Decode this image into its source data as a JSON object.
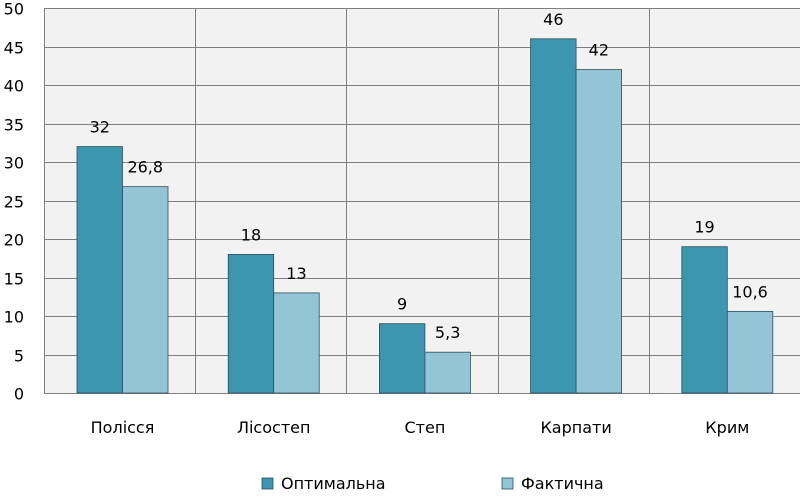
{
  "chart_data": {
    "type": "bar",
    "title": "",
    "xlabel": "",
    "ylabel": "",
    "categories": [
      "Полісся",
      "Лісостеп",
      "Степ",
      "Карпати",
      "Крим"
    ],
    "series": [
      {
        "name": "Оптимальна",
        "values": [
          32,
          18,
          9,
          46,
          19
        ],
        "labels": [
          "32",
          "18",
          "9",
          "46",
          "19"
        ],
        "color": "#3C96AE"
      },
      {
        "name": "Фактична",
        "values": [
          26.8,
          13,
          5.3,
          42,
          10.6
        ],
        "labels": [
          "26,8",
          "13",
          "5,3",
          "42",
          "10,6"
        ],
        "color": "#93C5D6"
      }
    ],
    "ylim": [
      0,
      50
    ],
    "yticks": [
      "0",
      "5",
      "10",
      "15",
      "20",
      "25",
      "30",
      "35",
      "40",
      "45",
      "50"
    ],
    "grid": true,
    "legend_position": "bottom",
    "background": "#F2F2F2",
    "bar_border": "#2D4E5A"
  }
}
